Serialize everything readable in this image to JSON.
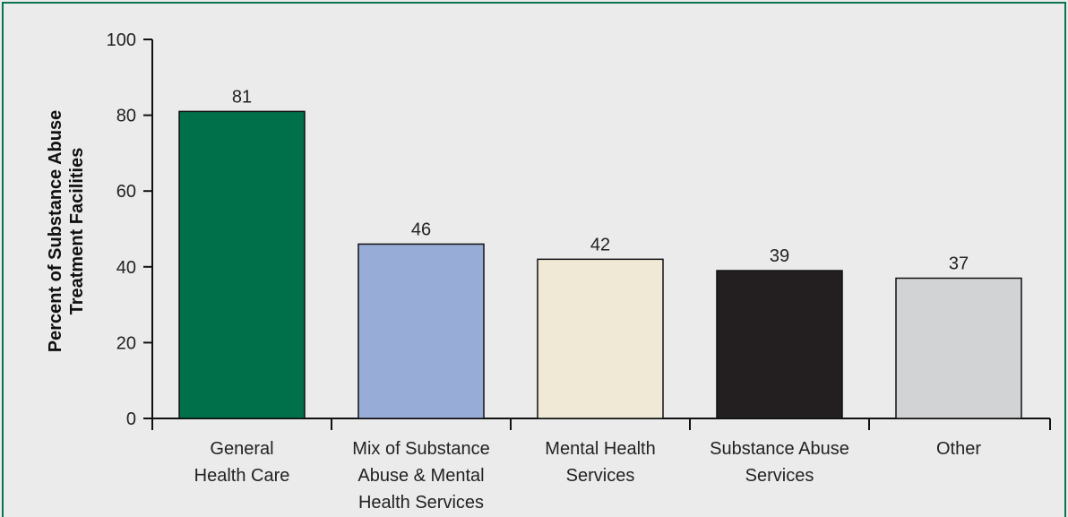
{
  "chart_data": {
    "type": "bar",
    "categories": [
      [
        "General",
        "Health Care"
      ],
      [
        "Mix of Substance",
        "Abuse & Mental",
        "Health Services"
      ],
      [
        "Mental Health",
        "Services"
      ],
      [
        "Substance Abuse",
        "Services"
      ],
      [
        "Other"
      ]
    ],
    "values": [
      81,
      46,
      42,
      39,
      37
    ],
    "data_labels": [
      "81",
      "46",
      "42",
      "39",
      "37"
    ],
    "bar_colors": [
      "#00704a",
      "#98acd8",
      "#f0e9d6",
      "#231f20",
      "#d2d3d5"
    ],
    "ylabel": [
      "Percent of Substance Abuse",
      "Treatment Facilities"
    ],
    "ylim": [
      0,
      100
    ],
    "yticks": [
      0,
      20,
      40,
      60,
      80,
      100
    ],
    "grid": false
  }
}
